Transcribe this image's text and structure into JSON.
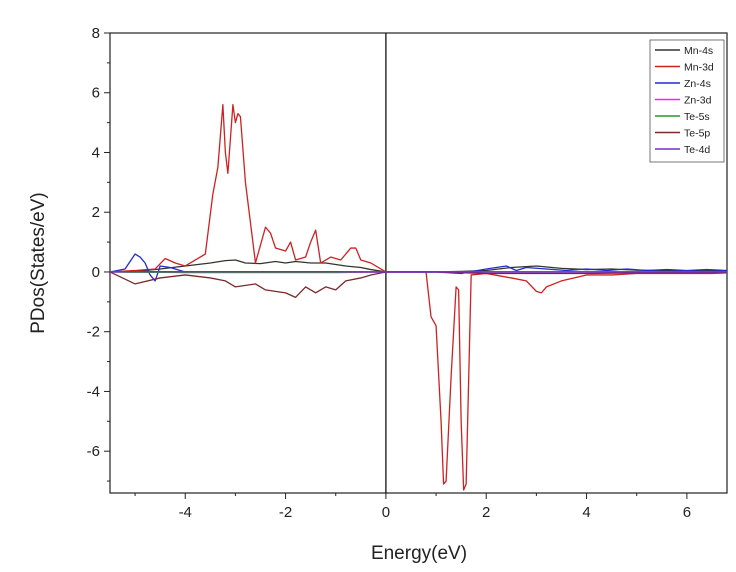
{
  "chart_data": {
    "type": "line",
    "xlabel": "Energy(eV)",
    "ylabel": "PDos(States/eV)",
    "xlim": [
      -5.5,
      6.8
    ],
    "ylim": [
      -7.4,
      8
    ],
    "xticks": [
      -4,
      -2,
      0,
      2,
      4,
      6
    ],
    "yticks": [
      -6,
      -4,
      -2,
      0,
      2,
      4,
      6,
      8
    ],
    "legend_position": "top-right",
    "fermi_line_x": 0,
    "series": [
      {
        "name": "Mn-4s",
        "color": "#333333",
        "x": [
          -5.5,
          -5.0,
          -4.8,
          -4.5,
          -4.0,
          -3.5,
          -3.2,
          -3.0,
          -2.8,
          -2.5,
          -2.2,
          -2.0,
          -1.8,
          -1.5,
          -1.2,
          -1.0,
          -0.8,
          -0.5,
          -0.3,
          0.0,
          0.5,
          1.0,
          1.5,
          2.0,
          2.5,
          3.0,
          3.5,
          4.0,
          4.5,
          5.0,
          5.5,
          6.0,
          6.5,
          6.8
        ],
        "y": [
          0,
          0.02,
          0.05,
          0.1,
          0.2,
          0.3,
          0.38,
          0.4,
          0.3,
          0.28,
          0.35,
          0.3,
          0.35,
          0.3,
          0.3,
          0.25,
          0.2,
          0.15,
          0.08,
          0,
          0,
          0,
          0.02,
          0.05,
          0.15,
          0.2,
          0.12,
          0.08,
          0.1,
          0.06,
          0.05,
          0.04,
          0.04,
          0.03
        ]
      },
      {
        "name": "Mn-3d",
        "color": "#d02020",
        "x": [
          -5.5,
          -5.0,
          -4.6,
          -4.4,
          -4.2,
          -4.0,
          -3.6,
          -3.45,
          -3.35,
          -3.25,
          -3.2,
          -3.15,
          -3.05,
          -3.0,
          -2.95,
          -2.9,
          -2.8,
          -2.6,
          -2.4,
          -2.3,
          -2.2,
          -2.0,
          -1.9,
          -1.8,
          -1.6,
          -1.5,
          -1.4,
          -1.3,
          -1.1,
          -0.9,
          -0.7,
          -0.6,
          -0.5,
          -0.3,
          0.0,
          0.4,
          0.8,
          0.9,
          1.0,
          1.1,
          1.15,
          1.2,
          1.3,
          1.4,
          1.45,
          1.5,
          1.55,
          1.6,
          1.7,
          2.0,
          2.5,
          2.8,
          3.0,
          3.1,
          3.2,
          3.5,
          4.0,
          4.5,
          5.0,
          5.5,
          6.0,
          6.5,
          6.8
        ],
        "y": [
          0,
          0.05,
          0.1,
          0.45,
          0.3,
          0.2,
          0.6,
          2.6,
          3.5,
          5.6,
          4.0,
          3.3,
          5.6,
          5.0,
          5.3,
          5.2,
          3.0,
          0.3,
          1.5,
          1.3,
          0.8,
          0.7,
          1.0,
          0.4,
          0.5,
          1.0,
          1.4,
          0.3,
          0.5,
          0.4,
          0.8,
          0.8,
          0.4,
          0.3,
          0,
          0,
          0,
          -1.5,
          -1.8,
          -5.0,
          -7.1,
          -7.0,
          -3.5,
          -0.5,
          -0.6,
          -5.0,
          -7.3,
          -7.1,
          -0.1,
          -0.05,
          -0.2,
          -0.3,
          -0.65,
          -0.7,
          -0.5,
          -0.3,
          -0.1,
          -0.1,
          -0.05,
          -0.05,
          -0.05,
          -0.05,
          -0.03
        ]
      },
      {
        "name": "Zn-4s",
        "color": "#1f2ecf",
        "x": [
          -5.5,
          -5.2,
          -5.0,
          -4.9,
          -4.8,
          -4.7,
          -4.6,
          -4.5,
          -4.3,
          -4.0,
          -3.5,
          -3.0,
          -2.0,
          -1.0,
          0.0,
          1.0,
          1.5,
          2.0,
          2.4,
          2.6,
          2.8,
          3.2,
          3.6,
          4.0,
          4.4,
          4.8,
          5.2,
          5.6,
          6.0,
          6.4,
          6.8
        ],
        "y": [
          0,
          0.1,
          0.6,
          0.5,
          0.3,
          -0.1,
          -0.3,
          0.2,
          0.15,
          0,
          0,
          0,
          0,
          0,
          0,
          0,
          -0.05,
          0.1,
          0.2,
          0.05,
          0.15,
          0.1,
          0.05,
          0.1,
          0.05,
          0.1,
          0.05,
          0.08,
          0.05,
          0.08,
          0.05
        ]
      },
      {
        "name": "Zn-3d",
        "color": "#ff1aff",
        "x": [
          -5.5,
          -5.0,
          -4.0,
          -3.0,
          -2.0,
          -1.0,
          0.0,
          1.0,
          2.0,
          3.0,
          4.0,
          5.0,
          6.0,
          6.8
        ],
        "y": [
          0,
          0,
          -0.02,
          -0.02,
          -0.02,
          -0.02,
          0,
          0,
          0,
          0,
          0,
          0,
          0,
          0
        ]
      },
      {
        "name": "Te-5s",
        "color": "#2a9a2a",
        "x": [
          -5.5,
          -5.0,
          -4.0,
          -3.0,
          -2.0,
          -1.0,
          0.0,
          1.0,
          2.0,
          3.0,
          4.0,
          5.0,
          6.0,
          6.8
        ],
        "y": [
          0,
          -0.01,
          -0.01,
          -0.01,
          -0.01,
          -0.01,
          0,
          0,
          0,
          0,
          0,
          0,
          0,
          0
        ]
      },
      {
        "name": "Te-5p",
        "color": "#7a2a2a",
        "x": [
          -5.5,
          -5.0,
          -4.5,
          -4.0,
          -3.5,
          -3.2,
          -3.0,
          -2.6,
          -2.4,
          -2.0,
          -1.8,
          -1.6,
          -1.4,
          -1.2,
          -1.0,
          -0.8,
          -0.5,
          -0.3,
          0.0,
          1.0,
          2.0,
          3.0,
          4.0,
          5.0,
          6.0,
          6.8
        ],
        "y": [
          0,
          -0.4,
          -0.2,
          -0.1,
          -0.2,
          -0.3,
          -0.5,
          -0.4,
          -0.6,
          -0.7,
          -0.85,
          -0.5,
          -0.7,
          -0.5,
          -0.6,
          -0.3,
          -0.2,
          -0.1,
          0,
          0,
          -0.05,
          -0.05,
          -0.05,
          -0.03,
          -0.03,
          -0.02
        ]
      },
      {
        "name": "Te-4d",
        "color": "#7a2ad0",
        "x": [
          -5.5,
          -5.0,
          -4.0,
          -3.0,
          -2.0,
          -1.0,
          0.0,
          1.0,
          2.0,
          3.0,
          4.0,
          5.0,
          6.0,
          6.8
        ],
        "y": [
          0,
          0.01,
          0.01,
          0.01,
          0.01,
          0.01,
          0,
          0,
          0,
          0,
          0,
          0,
          0,
          0
        ]
      }
    ]
  }
}
